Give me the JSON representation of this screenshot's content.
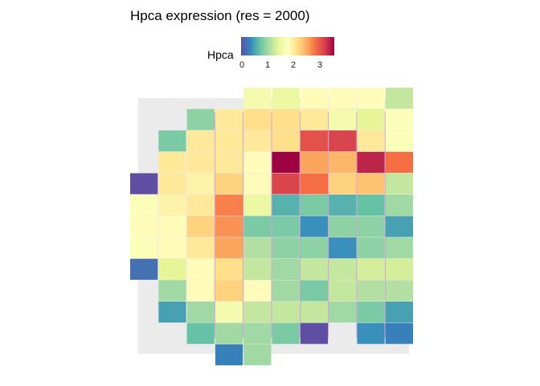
{
  "title": "Hpca expression (res = 2000)",
  "chart_data": {
    "type": "heatmap",
    "title": "Hpca expression (res = 2000)",
    "legend": {
      "title": "Hpca",
      "ticks": [
        "0",
        "1",
        "2",
        "3"
      ],
      "tick_values": [
        0,
        1,
        2,
        3
      ],
      "range": [
        0,
        3.5
      ],
      "placement": "top",
      "palette": [
        "#5e4fa2",
        "#3288bd",
        "#66c2a5",
        "#abdda4",
        "#e6f598",
        "#ffffbf",
        "#fee08b",
        "#fdae61",
        "#f46d43",
        "#d53e4f",
        "#9e0142"
      ]
    },
    "background_colour": "#ebebeb",
    "tiles": [
      {
        "col": 4,
        "row": 0,
        "value": 1.6
      },
      {
        "col": 5,
        "row": 0,
        "value": 1.5
      },
      {
        "col": 6,
        "row": 0,
        "value": 1.8
      },
      {
        "col": 7,
        "row": 0,
        "value": 1.8
      },
      {
        "col": 8,
        "row": 0,
        "value": 1.8
      },
      {
        "col": 9,
        "row": 0,
        "value": 1.2
      },
      {
        "col": 2,
        "row": 1,
        "value": 0.9
      },
      {
        "col": 3,
        "row": 1,
        "value": 2.0
      },
      {
        "col": 4,
        "row": 1,
        "value": 2.1
      },
      {
        "col": 5,
        "row": 1,
        "value": 2.1
      },
      {
        "col": 6,
        "row": 1,
        "value": 2.0
      },
      {
        "col": 7,
        "row": 1,
        "value": 1.6
      },
      {
        "col": 8,
        "row": 1,
        "value": 1.4
      },
      {
        "col": 9,
        "row": 1,
        "value": 1.7
      },
      {
        "col": 1,
        "row": 2,
        "value": 0.8
      },
      {
        "col": 2,
        "row": 2,
        "value": 2.0
      },
      {
        "col": 3,
        "row": 2,
        "value": 2.0
      },
      {
        "col": 4,
        "row": 2,
        "value": 2.0
      },
      {
        "col": 5,
        "row": 2,
        "value": 2.1
      },
      {
        "col": 6,
        "row": 2,
        "value": 3.0
      },
      {
        "col": 7,
        "row": 2,
        "value": 3.1
      },
      {
        "col": 8,
        "row": 2,
        "value": 2.0
      },
      {
        "col": 9,
        "row": 2,
        "value": 1.7
      },
      {
        "col": 1,
        "row": 3,
        "value": 2.0
      },
      {
        "col": 2,
        "row": 3,
        "value": 2.0
      },
      {
        "col": 3,
        "row": 3,
        "value": 2.0
      },
      {
        "col": 4,
        "row": 3,
        "value": 1.8
      },
      {
        "col": 5,
        "row": 3,
        "value": 3.5
      },
      {
        "col": 6,
        "row": 3,
        "value": 2.5
      },
      {
        "col": 7,
        "row": 3,
        "value": 2.4
      },
      {
        "col": 8,
        "row": 3,
        "value": 3.3
      },
      {
        "col": 9,
        "row": 3,
        "value": 2.8
      },
      {
        "col": 0,
        "row": 4,
        "value": 0.0
      },
      {
        "col": 1,
        "row": 4,
        "value": 2.0
      },
      {
        "col": 2,
        "row": 4,
        "value": 1.9
      },
      {
        "col": 3,
        "row": 4,
        "value": 2.2
      },
      {
        "col": 4,
        "row": 4,
        "value": 1.8
      },
      {
        "col": 5,
        "row": 4,
        "value": 3.1
      },
      {
        "col": 6,
        "row": 4,
        "value": 2.8
      },
      {
        "col": 7,
        "row": 4,
        "value": 2.2
      },
      {
        "col": 8,
        "row": 4,
        "value": 2.3
      },
      {
        "col": 9,
        "row": 4,
        "value": 1.2
      },
      {
        "col": 0,
        "row": 5,
        "value": 1.7
      },
      {
        "col": 1,
        "row": 5,
        "value": 1.9
      },
      {
        "col": 2,
        "row": 5,
        "value": 2.0
      },
      {
        "col": 3,
        "row": 5,
        "value": 2.7
      },
      {
        "col": 4,
        "row": 5,
        "value": 1.5
      },
      {
        "col": 5,
        "row": 5,
        "value": 0.6
      },
      {
        "col": 6,
        "row": 5,
        "value": 0.8
      },
      {
        "col": 7,
        "row": 5,
        "value": 0.6
      },
      {
        "col": 8,
        "row": 5,
        "value": 0.7
      },
      {
        "col": 9,
        "row": 5,
        "value": 1.0
      },
      {
        "col": 0,
        "row": 6,
        "value": 1.8
      },
      {
        "col": 1,
        "row": 6,
        "value": 1.8
      },
      {
        "col": 2,
        "row": 6,
        "value": 2.2
      },
      {
        "col": 3,
        "row": 6,
        "value": 2.6
      },
      {
        "col": 4,
        "row": 6,
        "value": 0.8
      },
      {
        "col": 5,
        "row": 6,
        "value": 0.8
      },
      {
        "col": 6,
        "row": 6,
        "value": 0.4
      },
      {
        "col": 7,
        "row": 6,
        "value": 0.9
      },
      {
        "col": 8,
        "row": 6,
        "value": 0.9
      },
      {
        "col": 9,
        "row": 6,
        "value": 0.5
      },
      {
        "col": 0,
        "row": 7,
        "value": 1.7
      },
      {
        "col": 1,
        "row": 7,
        "value": 1.8
      },
      {
        "col": 2,
        "row": 7,
        "value": 2.0
      },
      {
        "col": 3,
        "row": 7,
        "value": 2.5
      },
      {
        "col": 4,
        "row": 7,
        "value": 1.1
      },
      {
        "col": 5,
        "row": 7,
        "value": 0.9
      },
      {
        "col": 6,
        "row": 7,
        "value": 0.9
      },
      {
        "col": 7,
        "row": 7,
        "value": 0.4
      },
      {
        "col": 8,
        "row": 7,
        "value": 0.9
      },
      {
        "col": 9,
        "row": 7,
        "value": 1.0
      },
      {
        "col": 0,
        "row": 8,
        "value": 0.2
      },
      {
        "col": 1,
        "row": 8,
        "value": 1.4
      },
      {
        "col": 2,
        "row": 8,
        "value": 1.8
      },
      {
        "col": 3,
        "row": 8,
        "value": 2.1
      },
      {
        "col": 4,
        "row": 8,
        "value": 1.2
      },
      {
        "col": 5,
        "row": 8,
        "value": 1.0
      },
      {
        "col": 6,
        "row": 8,
        "value": 1.2
      },
      {
        "col": 7,
        "row": 8,
        "value": 1.2
      },
      {
        "col": 8,
        "row": 8,
        "value": 1.3
      },
      {
        "col": 9,
        "row": 8,
        "value": 1.3
      },
      {
        "col": 1,
        "row": 9,
        "value": 1.0
      },
      {
        "col": 2,
        "row": 9,
        "value": 1.8
      },
      {
        "col": 3,
        "row": 9,
        "value": 2.2
      },
      {
        "col": 4,
        "row": 9,
        "value": 1.8
      },
      {
        "col": 5,
        "row": 9,
        "value": 1.0
      },
      {
        "col": 6,
        "row": 9,
        "value": 0.8
      },
      {
        "col": 7,
        "row": 9,
        "value": 1.2
      },
      {
        "col": 8,
        "row": 9,
        "value": 1.1
      },
      {
        "col": 9,
        "row": 9,
        "value": 1.1
      },
      {
        "col": 1,
        "row": 10,
        "value": 0.5
      },
      {
        "col": 2,
        "row": 10,
        "value": 1.0
      },
      {
        "col": 3,
        "row": 10,
        "value": 1.6
      },
      {
        "col": 4,
        "row": 10,
        "value": 1.2
      },
      {
        "col": 5,
        "row": 10,
        "value": 1.2
      },
      {
        "col": 6,
        "row": 10,
        "value": 1.2
      },
      {
        "col": 7,
        "row": 10,
        "value": 1.0
      },
      {
        "col": 8,
        "row": 10,
        "value": 0.8
      },
      {
        "col": 9,
        "row": 10,
        "value": 0.5
      },
      {
        "col": 2,
        "row": 11,
        "value": 0.7
      },
      {
        "col": 3,
        "row": 11,
        "value": 1.0
      },
      {
        "col": 4,
        "row": 11,
        "value": 1.0
      },
      {
        "col": 5,
        "row": 11,
        "value": 0.8
      },
      {
        "col": 6,
        "row": 11,
        "value": 0.0
      },
      {
        "col": 8,
        "row": 11,
        "value": 0.4
      },
      {
        "col": 9,
        "row": 11,
        "value": 0.3
      },
      {
        "col": 3,
        "row": 12,
        "value": 0.3
      },
      {
        "col": 4,
        "row": 12,
        "value": 1.0
      }
    ]
  }
}
